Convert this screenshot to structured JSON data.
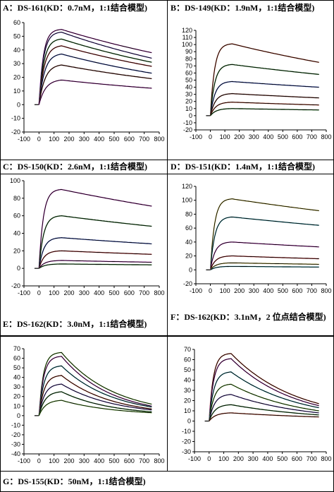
{
  "panels_meta": {
    "A": {
      "label": "A：DS-161(KD：0.7nM，1:1结合模型)"
    },
    "B": {
      "label": "B：DS-149(KD：1.9nM，1:1结合模型)"
    },
    "C": {
      "label": "C：DS-150(KD：2.6nM，1:1结合模型)"
    },
    "D": {
      "label": "D：DS-151(KD：1.4nM，1:1结合模型)"
    },
    "E": {
      "label": "E：DS-162(KD：3.0nM，1:1结合模型)"
    },
    "F": {
      "label": "F：DS-162(KD：3.1nM，2 位点结合模型)"
    },
    "G": {
      "label": "G：DS-155(KD：50nM，1:1结合模型)"
    }
  },
  "chart_data": [
    {
      "id": "A",
      "type": "line",
      "xlim": [
        -100,
        800
      ],
      "ylim": [
        -20,
        60
      ],
      "xticks": [
        -100,
        0,
        100,
        200,
        300,
        400,
        500,
        600,
        700,
        800
      ],
      "yticks": [
        -20,
        -10,
        0,
        10,
        20,
        30,
        40,
        50,
        60
      ],
      "association_end": 150,
      "injection_start": 0,
      "x_end": 750,
      "colors": [
        "#d23fd0",
        "#7a5ad8",
        "#2d8a2d",
        "#d93838",
        "#3d5ad8",
        "#8b3a2e"
      ],
      "series": [
        {
          "peak": 55,
          "end": 38
        },
        {
          "peak": 53,
          "end": 34
        },
        {
          "peak": 48,
          "end": 31
        },
        {
          "peak": 43,
          "end": 28
        },
        {
          "peak": 37,
          "end": 23
        },
        {
          "peak": 29,
          "end": 19
        },
        {
          "peak": 18,
          "end": 12
        }
      ]
    },
    {
      "id": "B",
      "type": "line",
      "xlim": [
        -100,
        800
      ],
      "ylim": [
        -20,
        120
      ],
      "xticks": [
        -100,
        0,
        100,
        200,
        300,
        400,
        500,
        600,
        700,
        800
      ],
      "yticks": [
        -20,
        -10,
        0,
        10,
        20,
        30,
        40,
        50,
        60,
        70,
        80,
        90,
        100,
        110,
        120
      ],
      "association_end": 150,
      "injection_start": 0,
      "x_end": 750,
      "colors": [
        "#d24a2c",
        "#2d8a2d",
        "#3d5ad8",
        "#8b3a2e"
      ],
      "series": [
        {
          "peak": 101,
          "end": 75
        },
        {
          "peak": 72,
          "end": 58
        },
        {
          "peak": 48,
          "end": 40
        },
        {
          "peak": 31,
          "end": 25
        },
        {
          "peak": 19,
          "end": 15
        },
        {
          "peak": 10,
          "end": 8
        }
      ]
    },
    {
      "id": "C",
      "type": "line",
      "xlim": [
        -100,
        800
      ],
      "ylim": [
        -20,
        100
      ],
      "xticks": [
        -100,
        0,
        100,
        200,
        300,
        400,
        500,
        600,
        700,
        800
      ],
      "yticks": [
        -20,
        0,
        20,
        40,
        60,
        80,
        100
      ],
      "association_end": 150,
      "injection_start": 0,
      "x_end": 750,
      "colors": [
        "#d23fd0",
        "#2d8a2d",
        "#3d5ad8",
        "#d93838"
      ],
      "series": [
        {
          "peak": 90,
          "end": 71
        },
        {
          "peak": 60,
          "end": 48
        },
        {
          "peak": 35,
          "end": 28
        },
        {
          "peak": 20,
          "end": 16
        },
        {
          "peak": 9,
          "end": 7
        },
        {
          "peak": 5,
          "end": 4
        }
      ]
    },
    {
      "id": "D",
      "type": "line",
      "xlim": [
        -100,
        800
      ],
      "ylim": [
        -20,
        120
      ],
      "xticks": [
        -100,
        0,
        100,
        200,
        300,
        400,
        500,
        600,
        700,
        800
      ],
      "yticks": [
        -20,
        0,
        20,
        40,
        60,
        80,
        100,
        120
      ],
      "association_end": 150,
      "injection_start": 0,
      "x_end": 750,
      "colors": [
        "#d2c23c",
        "#2da8b8",
        "#d23fd0",
        "#d93838"
      ],
      "series": [
        {
          "peak": 102,
          "end": 85
        },
        {
          "peak": 76,
          "end": 64
        },
        {
          "peak": 40,
          "end": 33
        },
        {
          "peak": 20,
          "end": 16
        },
        {
          "peak": 10,
          "end": 8
        },
        {
          "peak": 5,
          "end": 4
        }
      ]
    },
    {
      "id": "G",
      "type": "line",
      "xlim": [
        -100,
        800
      ],
      "ylim": [
        -40,
        70
      ],
      "xticks": [
        -100,
        0,
        100,
        200,
        300,
        400,
        500,
        600,
        700,
        800
      ],
      "yticks": [
        -40,
        -30,
        -20,
        -10,
        0,
        10,
        20,
        30,
        40,
        50,
        60,
        70
      ],
      "association_end": 150,
      "injection_start": 0,
      "x_end": 750,
      "colors": [
        "#7ad23c",
        "#d23fd0",
        "#2da8b8",
        "#d24a2c",
        "#7a5ad8",
        "#2d8a2d"
      ],
      "series": [
        {
          "peak": 66,
          "end": 12
        },
        {
          "peak": 62,
          "end": 10
        },
        {
          "peak": 52,
          "end": 9
        },
        {
          "peak": 42,
          "end": 7
        },
        {
          "peak": 33,
          "end": 6
        },
        {
          "peak": 25,
          "end": 4
        },
        {
          "peak": 16,
          "end": 3
        }
      ]
    },
    {
      "id": "H",
      "type": "line",
      "xlim": [
        -100,
        800
      ],
      "ylim": [
        -30,
        70
      ],
      "xticks": [
        -100,
        0,
        100,
        200,
        300,
        400,
        500,
        600,
        700,
        800
      ],
      "yticks": [
        -30,
        -20,
        -10,
        0,
        10,
        20,
        30,
        40,
        50,
        60,
        70
      ],
      "association_end": 150,
      "injection_start": 0,
      "x_end": 750,
      "colors": [
        "#d24a2c",
        "#d23fd0",
        "#2da8b8",
        "#7ad23c",
        "#7a5ad8",
        "#2d8a2d"
      ],
      "series": [
        {
          "peak": 66,
          "end": 17
        },
        {
          "peak": 61,
          "end": 15
        },
        {
          "peak": 48,
          "end": 13
        },
        {
          "peak": 36,
          "end": 10
        },
        {
          "peak": 26,
          "end": 8
        },
        {
          "peak": 16,
          "end": 6
        },
        {
          "peak": 8,
          "end": 4
        }
      ]
    }
  ]
}
